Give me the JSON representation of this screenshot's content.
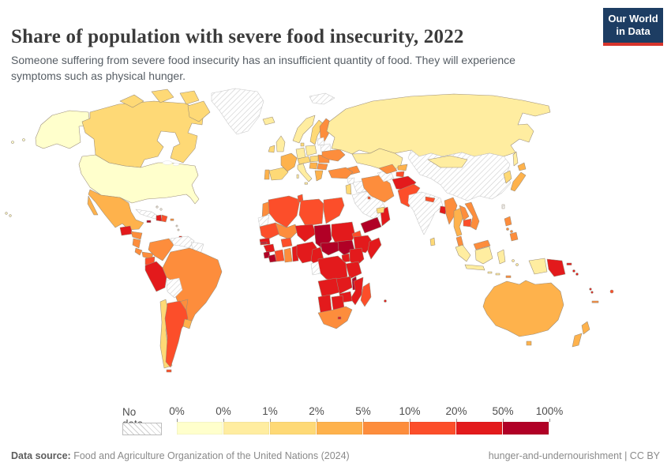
{
  "header": {
    "title": "Share of population with severe food insecurity, 2022",
    "subtitle": "Someone suffering from severe food insecurity has an insufficient quantity of food. They will experience symptoms such as physical hunger.",
    "logo": {
      "line1": "Our World",
      "line2": "in Data",
      "bg_color": "#1d3d63",
      "accent_color": "#d7342c"
    }
  },
  "legend": {
    "no_data_label": "No data",
    "tick_labels": [
      "0%",
      "0%",
      "1%",
      "2%",
      "5%",
      "10%",
      "20%",
      "50%",
      "100%"
    ]
  },
  "footer": {
    "source_label": "Data source:",
    "source_text": " Food and Agriculture Organization of the United Nations (2024)",
    "right_text": "hunger-and-undernourishment | CC BY"
  },
  "chart_data": {
    "type": "heatmap",
    "subtype": "choropleth-world-map",
    "title": "Share of population with severe food insecurity, 2022",
    "unit": "% of population",
    "legend_ticks": [
      "0%",
      "0%",
      "1%",
      "2%",
      "5%",
      "10%",
      "20%",
      "50%",
      "100%"
    ],
    "palette": [
      "#FFFFCC",
      "#FFEDA0",
      "#FED976",
      "#FEB24C",
      "#FD8D3C",
      "#FC4E2A",
      "#E31A1C",
      "#B10026"
    ],
    "bin_ranges": [
      "0-0%",
      "0-1%",
      "1-2%",
      "2-5%",
      "5-10%",
      "10-20%",
      "20-50%",
      "50-100%"
    ],
    "no_data_style": "hatched",
    "regions": [
      {
        "id": "usa",
        "name": "United States",
        "bin": 0
      },
      {
        "id": "canada",
        "name": "Canada",
        "bin": 2
      },
      {
        "id": "greenland",
        "name": "Greenland",
        "bin": null
      },
      {
        "id": "iceland",
        "name": "Iceland",
        "bin": 1
      },
      {
        "id": "mexico",
        "name": "Mexico",
        "bin": 3
      },
      {
        "id": "guatemala",
        "name": "Guatemala",
        "bin": 6
      },
      {
        "id": "honduras",
        "name": "Honduras",
        "bin": 4
      },
      {
        "id": "nicaragua",
        "name": "Nicaragua",
        "bin": 4
      },
      {
        "id": "costa-rica",
        "name": "Costa Rica",
        "bin": 4
      },
      {
        "id": "panama",
        "name": "Panama",
        "bin": 4
      },
      {
        "id": "cuba",
        "name": "Cuba",
        "bin": null
      },
      {
        "id": "bahamas",
        "name": "Bahamas",
        "bin": null
      },
      {
        "id": "jamaica",
        "name": "Jamaica",
        "bin": 7
      },
      {
        "id": "haiti",
        "name": "Haiti",
        "bin": 6
      },
      {
        "id": "dominican-republic",
        "name": "Dominican Republic",
        "bin": 5
      },
      {
        "id": "puerto-rico",
        "name": "Puerto Rico",
        "bin": 4
      },
      {
        "id": "lesser-antilles",
        "name": "Lesser Antilles",
        "bin": null
      },
      {
        "id": "trinidad",
        "name": "Trinidad and Tobago",
        "bin": 6
      },
      {
        "id": "colombia",
        "name": "Colombia",
        "bin": 4
      },
      {
        "id": "venezuela",
        "name": "Venezuela",
        "bin": null
      },
      {
        "id": "guyanas",
        "name": "Guyana and Suriname",
        "bin": null
      },
      {
        "id": "ecuador",
        "name": "Ecuador",
        "bin": 5
      },
      {
        "id": "peru",
        "name": "Peru",
        "bin": 6
      },
      {
        "id": "brazil",
        "name": "Brazil",
        "bin": 4
      },
      {
        "id": "bolivia",
        "name": "Bolivia",
        "bin": null
      },
      {
        "id": "paraguay",
        "name": "Paraguay",
        "bin": 4
      },
      {
        "id": "chile",
        "name": "Chile",
        "bin": 2
      },
      {
        "id": "argentina",
        "name": "Argentina",
        "bin": 5
      },
      {
        "id": "uruguay",
        "name": "Uruguay",
        "bin": 3
      },
      {
        "id": "norway",
        "name": "Norway",
        "bin": 1
      },
      {
        "id": "sweden",
        "name": "Sweden",
        "bin": 2
      },
      {
        "id": "finland",
        "name": "Finland",
        "bin": 4
      },
      {
        "id": "svalbard",
        "name": "Svalbard",
        "bin": null
      },
      {
        "id": "denmark",
        "name": "Denmark",
        "bin": 2
      },
      {
        "id": "uk",
        "name": "United Kingdom",
        "bin": 1
      },
      {
        "id": "ireland",
        "name": "Ireland",
        "bin": 2
      },
      {
        "id": "france",
        "name": "France",
        "bin": 3
      },
      {
        "id": "spain",
        "name": "Spain",
        "bin": 2
      },
      {
        "id": "portugal",
        "name": "Portugal",
        "bin": 3
      },
      {
        "id": "germany",
        "name": "Germany",
        "bin": 1
      },
      {
        "id": "poland",
        "name": "Poland",
        "bin": 1
      },
      {
        "id": "baltics",
        "name": "Baltic states",
        "bin": null
      },
      {
        "id": "belarus",
        "name": "Belarus",
        "bin": null
      },
      {
        "id": "czechia-austria",
        "name": "Czechia and Austria",
        "bin": 2
      },
      {
        "id": "italy",
        "name": "Italy",
        "bin": 1
      },
      {
        "id": "hungary",
        "name": "Hungary",
        "bin": 2
      },
      {
        "id": "romania",
        "name": "Romania",
        "bin": 4
      },
      {
        "id": "balkans-serbia",
        "name": "Serbia and Bosnia",
        "bin": 3
      },
      {
        "id": "bulgaria",
        "name": "Bulgaria",
        "bin": 4
      },
      {
        "id": "greece",
        "name": "Greece",
        "bin": 3
      },
      {
        "id": "ukraine",
        "name": "Ukraine",
        "bin": 4
      },
      {
        "id": "russia",
        "name": "Russia",
        "bin": 1
      },
      {
        "id": "kazakhstan",
        "name": "Kazakhstan",
        "bin": 1
      },
      {
        "id": "caucasus",
        "name": "Caucasus states",
        "bin": 4
      },
      {
        "id": "turkey",
        "name": "Turkey",
        "bin": 4
      },
      {
        "id": "syria",
        "name": "Syria",
        "bin": null
      },
      {
        "id": "iraq",
        "name": "Iraq",
        "bin": null
      },
      {
        "id": "jordan-israel",
        "name": "Jordan and Israel",
        "bin": 2
      },
      {
        "id": "saudi-arabia",
        "name": "Saudi Arabia",
        "bin": null
      },
      {
        "id": "kuwait",
        "name": "Kuwait",
        "bin": 5
      },
      {
        "id": "yemen",
        "name": "Yemen",
        "bin": 7
      },
      {
        "id": "oman",
        "name": "Oman",
        "bin": 6
      },
      {
        "id": "uae",
        "name": "United Arab Emirates",
        "bin": 2
      },
      {
        "id": "iran",
        "name": "Iran",
        "bin": 4
      },
      {
        "id": "turkmenistan",
        "name": "Turkmenistan",
        "bin": null
      },
      {
        "id": "uzbekistan",
        "name": "Uzbekistan",
        "bin": 4
      },
      {
        "id": "kyrgyzstan",
        "name": "Kyrgyzstan",
        "bin": 3
      },
      {
        "id": "tajikistan",
        "name": "Tajikistan",
        "bin": 5
      },
      {
        "id": "afghanistan",
        "name": "Afghanistan",
        "bin": 6
      },
      {
        "id": "pakistan",
        "name": "Pakistan",
        "bin": 5
      },
      {
        "id": "india",
        "name": "India",
        "bin": null
      },
      {
        "id": "nepal",
        "name": "Nepal",
        "bin": 5
      },
      {
        "id": "bangladesh",
        "name": "Bangladesh",
        "bin": 6
      },
      {
        "id": "sri-lanka",
        "name": "Sri Lanka",
        "bin": 2
      },
      {
        "id": "china",
        "name": "China",
        "bin": null
      },
      {
        "id": "mongolia",
        "name": "Mongolia",
        "bin": 1
      },
      {
        "id": "korea",
        "name": "South Korea",
        "bin": 2
      },
      {
        "id": "japan",
        "name": "Japan",
        "bin": 3
      },
      {
        "id": "taiwan",
        "name": "Taiwan",
        "bin": null
      },
      {
        "id": "myanmar",
        "name": "Myanmar",
        "bin": 4
      },
      {
        "id": "thailand",
        "name": "Thailand",
        "bin": 3
      },
      {
        "id": "laos",
        "name": "Laos",
        "bin": 4
      },
      {
        "id": "cambodia",
        "name": "Cambodia",
        "bin": 5
      },
      {
        "id": "vietnam",
        "name": "Vietnam",
        "bin": 4
      },
      {
        "id": "malaysia",
        "name": "Malaysia",
        "bin": 4
      },
      {
        "id": "philippines",
        "name": "Philippines",
        "bin": 4
      },
      {
        "id": "indonesia",
        "name": "Indonesia",
        "bin": 1
      },
      {
        "id": "timor-leste",
        "name": "Timor-Leste",
        "bin": 4
      },
      {
        "id": "papua-new-guinea",
        "name": "Papua New Guinea",
        "bin": 6
      },
      {
        "id": "solomon-islands",
        "name": "Solomon Islands",
        "bin": 6
      },
      {
        "id": "vanuatu",
        "name": "Vanuatu",
        "bin": 6
      },
      {
        "id": "fiji",
        "name": "Fiji",
        "bin": 5
      },
      {
        "id": "new-caledonia",
        "name": "New Caledonia",
        "bin": 4
      },
      {
        "id": "australia",
        "name": "Australia",
        "bin": 3
      },
      {
        "id": "new-zealand",
        "name": "New Zealand",
        "bin": 3
      },
      {
        "id": "morocco",
        "name": "Morocco",
        "bin": 4
      },
      {
        "id": "western-sahara",
        "name": "Western Sahara",
        "bin": null
      },
      {
        "id": "algeria",
        "name": "Algeria",
        "bin": 5
      },
      {
        "id": "tunisia",
        "name": "Tunisia",
        "bin": 5
      },
      {
        "id": "libya",
        "name": "Libya",
        "bin": 5
      },
      {
        "id": "egypt",
        "name": "Egypt",
        "bin": 5
      },
      {
        "id": "mauritania",
        "name": "Mauritania",
        "bin": 5
      },
      {
        "id": "mali",
        "name": "Mali",
        "bin": 4
      },
      {
        "id": "niger",
        "name": "Niger",
        "bin": 6
      },
      {
        "id": "chad",
        "name": "Chad",
        "bin": 7
      },
      {
        "id": "sudan",
        "name": "Sudan",
        "bin": 6
      },
      {
        "id": "eritrea",
        "name": "Eritrea",
        "bin": 5
      },
      {
        "id": "djibouti",
        "name": "Djibouti",
        "bin": 5
      },
      {
        "id": "senegal",
        "name": "Senegal",
        "bin": 6
      },
      {
        "id": "gambia",
        "name": "Gambia",
        "bin": 7
      },
      {
        "id": "guinea",
        "name": "Guinea",
        "bin": 6
      },
      {
        "id": "sierra-leone",
        "name": "Sierra Leone",
        "bin": 7
      },
      {
        "id": "liberia",
        "name": "Liberia",
        "bin": 7
      },
      {
        "id": "ivory-coast",
        "name": "Cote d'Ivoire",
        "bin": 5
      },
      {
        "id": "burkina-faso",
        "name": "Burkina Faso",
        "bin": 5
      },
      {
        "id": "ghana",
        "name": "Ghana",
        "bin": 4
      },
      {
        "id": "togo-benin",
        "name": "Togo and Benin",
        "bin": 6
      },
      {
        "id": "nigeria",
        "name": "Nigeria",
        "bin": 6
      },
      {
        "id": "cameroon",
        "name": "Cameroon",
        "bin": 6
      },
      {
        "id": "central-african-republic",
        "name": "Central African Republic",
        "bin": 7
      },
      {
        "id": "south-sudan",
        "name": "South Sudan",
        "bin": 7
      },
      {
        "id": "ethiopia",
        "name": "Ethiopia",
        "bin": 6
      },
      {
        "id": "somalia",
        "name": "Somalia",
        "bin": 6
      },
      {
        "id": "uganda",
        "name": "Uganda",
        "bin": 6
      },
      {
        "id": "kenya",
        "name": "Kenya",
        "bin": 6
      },
      {
        "id": "rwanda-burundi",
        "name": "Rwanda and Burundi",
        "bin": 6
      },
      {
        "id": "drc",
        "name": "Democratic Republic of Congo",
        "bin": 6
      },
      {
        "id": "gabon-congo",
        "name": "Gabon",
        "bin": null
      },
      {
        "id": "tanzania",
        "name": "Tanzania",
        "bin": 6
      },
      {
        "id": "malawi",
        "name": "Malawi",
        "bin": 7
      },
      {
        "id": "angola",
        "name": "Angola",
        "bin": 6
      },
      {
        "id": "zambia",
        "name": "Zambia",
        "bin": 6
      },
      {
        "id": "mozambique",
        "name": "Mozambique",
        "bin": 6
      },
      {
        "id": "zimbabwe",
        "name": "Zimbabwe",
        "bin": 6
      },
      {
        "id": "namibia",
        "name": "Namibia",
        "bin": 6
      },
      {
        "id": "botswana",
        "name": "Botswana",
        "bin": 6
      },
      {
        "id": "south-africa",
        "name": "South Africa",
        "bin": 4
      },
      {
        "id": "lesotho",
        "name": "Lesotho",
        "bin": 6
      },
      {
        "id": "madagascar",
        "name": "Madagascar",
        "bin": 5
      },
      {
        "id": "mauritius",
        "name": "Mauritius",
        "bin": 6
      }
    ]
  }
}
